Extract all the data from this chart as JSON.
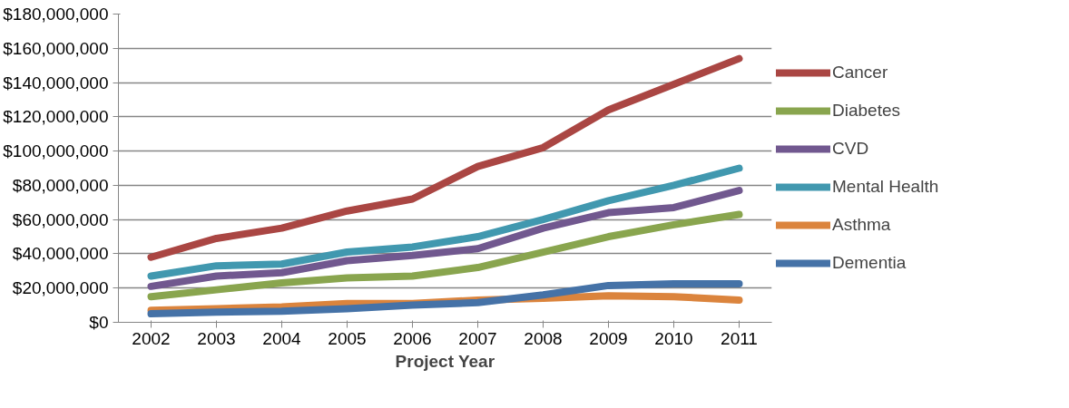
{
  "chart_data": {
    "type": "line",
    "xlabel": "Project Year",
    "categories": [
      "2002",
      "2003",
      "2004",
      "2005",
      "2006",
      "2007",
      "2008",
      "2009",
      "2010",
      "2011"
    ],
    "series": [
      {
        "name": "Cancer",
        "color": "#aa4643",
        "values": [
          38000000,
          49000000,
          55000000,
          65000000,
          72000000,
          91000000,
          102000000,
          124000000,
          139000000,
          154000000
        ]
      },
      {
        "name": "Diabetes",
        "color": "#89a54e",
        "values": [
          15000000,
          19000000,
          23000000,
          26000000,
          27000000,
          32000000,
          41000000,
          50000000,
          57000000,
          63000000
        ]
      },
      {
        "name": "CVD",
        "color": "#71588f",
        "values": [
          21000000,
          27000000,
          29000000,
          36000000,
          39000000,
          43000000,
          55000000,
          64000000,
          67000000,
          77000000
        ]
      },
      {
        "name": "Mental Health",
        "color": "#4198af",
        "values": [
          27000000,
          33000000,
          34000000,
          41000000,
          44000000,
          50000000,
          60000000,
          71000000,
          80000000,
          90000000
        ]
      },
      {
        "name": "Asthma",
        "color": "#db843d",
        "values": [
          7000000,
          8000000,
          9000000,
          11000000,
          11000000,
          13000000,
          14000000,
          15500000,
          15000000,
          13000000
        ]
      },
      {
        "name": "Dementia",
        "color": "#4572a7",
        "values": [
          5000000,
          6000000,
          6500000,
          8000000,
          10000000,
          11500000,
          16000000,
          21500000,
          22500000,
          22500000
        ]
      }
    ],
    "ylim": [
      0,
      180000000
    ],
    "yticks": [
      {
        "value": 0,
        "label": "$0"
      },
      {
        "value": 20000000,
        "label": "$20,000,000"
      },
      {
        "value": 40000000,
        "label": "$40,000,000"
      },
      {
        "value": 60000000,
        "label": "$60,000,000"
      },
      {
        "value": 80000000,
        "label": "$80,000,000"
      },
      {
        "value": 100000000,
        "label": "$100,000,000"
      },
      {
        "value": 120000000,
        "label": "$120,000,000"
      },
      {
        "value": 140000000,
        "label": "$140,000,000"
      },
      {
        "value": 160000000,
        "label": "$160,000,000"
      },
      {
        "value": 180000000,
        "label": "$180,000,000"
      }
    ],
    "grid": "y",
    "legend": "right",
    "marker": "none",
    "line_style": "solid"
  }
}
